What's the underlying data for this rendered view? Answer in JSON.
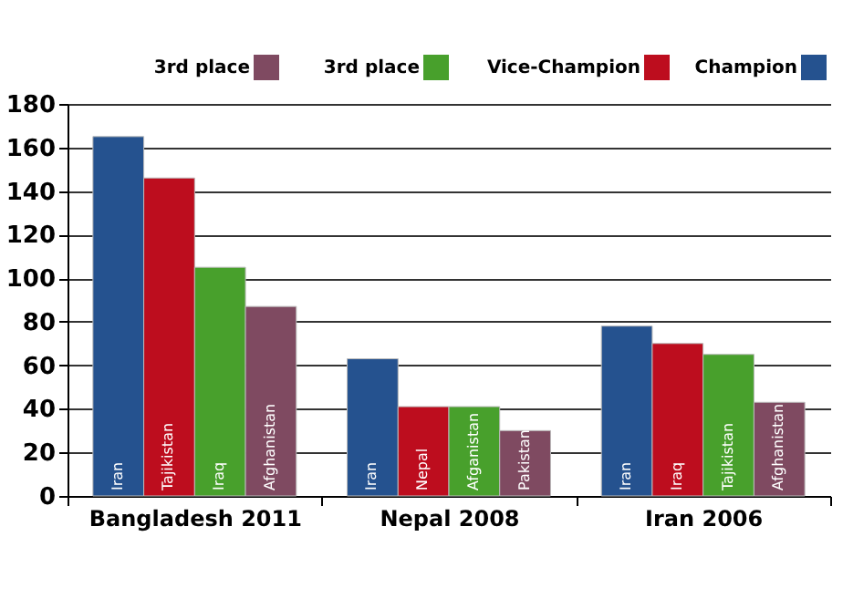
{
  "chart_data": {
    "type": "bar",
    "categories": [
      "Bangladesh 2011",
      "Nepal 2008",
      "Iran 2006"
    ],
    "series": [
      {
        "name": "Champion",
        "color": "#25528f",
        "values": [
          165,
          63,
          78
        ],
        "value_labels": [
          "Iran",
          "Iran",
          "Iran"
        ]
      },
      {
        "name": "Vice-Champion",
        "color": "#bd0d1e",
        "values": [
          146,
          41,
          70
        ],
        "value_labels": [
          "Tajikistan",
          "Nepal",
          "Iraq"
        ]
      },
      {
        "name": "3rd place",
        "color": "#48a02c",
        "values": [
          105,
          41,
          65
        ],
        "value_labels": [
          "Iraq",
          "Afganistan",
          "Tajikistan"
        ]
      },
      {
        "name": "3rd place",
        "color": "#7f4a61",
        "values": [
          87,
          30,
          43
        ],
        "value_labels": [
          "Afghanistan",
          "Pakistan",
          "Afghanistan"
        ]
      }
    ],
    "ylim": [
      0,
      180
    ],
    "yticks": [
      0,
      20,
      40,
      60,
      80,
      100,
      120,
      140,
      160,
      180
    ],
    "grid": "y",
    "legend": "top right"
  }
}
